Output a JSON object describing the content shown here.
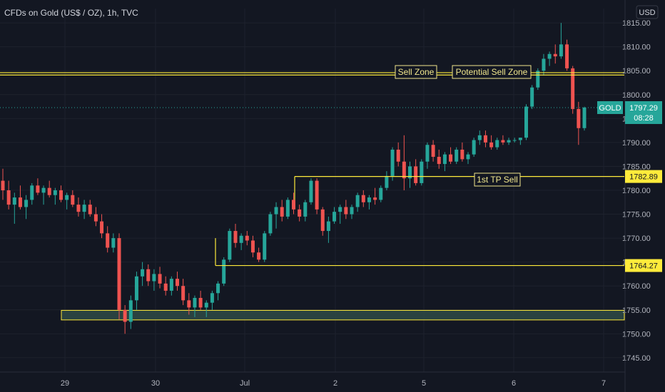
{
  "header": {
    "title": "CFDs on Gold (US$ / OZ), 1h, TVC",
    "currency_button": "USD"
  },
  "colors": {
    "background": "#131722",
    "grid": "#1e222d",
    "up": "#26a69a",
    "down": "#ef5350",
    "annotation": "#f0e68c",
    "level_line": "#ffeb3b",
    "zone_fill": "#2f4a45",
    "price_badge": "#26a69a"
  },
  "price_badge": {
    "symbol": "GOLD",
    "price": "1797.29",
    "countdown": "08:28"
  },
  "level_badges": [
    "1782.89",
    "1764.27"
  ],
  "annotations": {
    "sell_zone": "Sell Zone",
    "potential_sell_zone": "Potential Sell Zone",
    "tp_sell": "1st TP Sell"
  },
  "chart_data": {
    "type": "candlestick",
    "title": "CFDs on Gold (US$ / OZ), 1h, TVC",
    "ylim": [
      1742,
      1818
    ],
    "y_ticks": [
      "1815.00",
      "1810.00",
      "1805.00",
      "1800.00",
      "1795.00",
      "1790.00",
      "1785.00",
      "1780.00",
      "1775.00",
      "1770.00",
      "1765.00",
      "1760.00",
      "1755.00",
      "1750.00",
      "1745.00"
    ],
    "x_ticks": [
      "29",
      "30",
      "Jul",
      "2",
      "5",
      "6",
      "7"
    ],
    "grid": true,
    "last_price": 1797.29,
    "levels": [
      {
        "name": "sell-zone-line-1",
        "value": 1804.6
      },
      {
        "name": "sell-zone-line-2",
        "value": 1804.1
      },
      {
        "name": "tp-line",
        "value": 1782.89
      },
      {
        "name": "support-line",
        "value": 1764.27
      }
    ],
    "zone": {
      "low": 1752.9,
      "high": 1754.9
    },
    "candles": [
      [
        1782,
        1784.5,
        1778,
        1780
      ],
      [
        1780,
        1782,
        1776,
        1777
      ],
      [
        1777,
        1779.5,
        1773,
        1778.5
      ],
      [
        1778.5,
        1781,
        1776,
        1776.5
      ],
      [
        1776.5,
        1779,
        1774,
        1778
      ],
      [
        1778,
        1781.5,
        1777,
        1781
      ],
      [
        1781,
        1782.5,
        1779,
        1779.5
      ],
      [
        1779.5,
        1781,
        1777,
        1780.5
      ],
      [
        1780.5,
        1782,
        1778.5,
        1779
      ],
      [
        1779,
        1780.5,
        1777,
        1780
      ],
      [
        1780,
        1781,
        1777.5,
        1778
      ],
      [
        1778,
        1779.5,
        1776,
        1779
      ],
      [
        1779,
        1780,
        1776.5,
        1777
      ],
      [
        1777,
        1778.5,
        1774.5,
        1775.5
      ],
      [
        1775.5,
        1778,
        1774,
        1777
      ],
      [
        1777,
        1778,
        1774.5,
        1775
      ],
      [
        1775,
        1776.5,
        1772.5,
        1773.5
      ],
      [
        1773.5,
        1775,
        1770,
        1771
      ],
      [
        1771,
        1772.5,
        1767,
        1768
      ],
      [
        1768,
        1771,
        1767,
        1770
      ],
      [
        1770,
        1771,
        1753,
        1755
      ],
      [
        1755,
        1756,
        1750,
        1752.5
      ],
      [
        1752.5,
        1758,
        1751,
        1757
      ],
      [
        1757,
        1763,
        1755,
        1762
      ],
      [
        1762,
        1765,
        1760,
        1763.5
      ],
      [
        1763.5,
        1764.5,
        1760,
        1761
      ],
      [
        1761,
        1763.5,
        1759,
        1762.5
      ],
      [
        1762.5,
        1764,
        1759.5,
        1760.5
      ],
      [
        1760.5,
        1762,
        1758,
        1759
      ],
      [
        1759,
        1762,
        1758,
        1761.5
      ],
      [
        1761.5,
        1763,
        1759,
        1760
      ],
      [
        1760,
        1761.5,
        1756,
        1757
      ],
      [
        1757,
        1758.5,
        1754,
        1755.5
      ],
      [
        1755.5,
        1758,
        1753.5,
        1757.5
      ],
      [
        1757.5,
        1759,
        1755,
        1755.5
      ],
      [
        1755.5,
        1757,
        1753.5,
        1756.5
      ],
      [
        1756.5,
        1759,
        1755,
        1758.5
      ],
      [
        1758.5,
        1761,
        1757,
        1760.5
      ],
      [
        1760.5,
        1766,
        1760,
        1765.5
      ],
      [
        1765.5,
        1772,
        1765,
        1771.5
      ],
      [
        1771.5,
        1773,
        1768,
        1769
      ],
      [
        1769,
        1771,
        1767.5,
        1770.5
      ],
      [
        1770.5,
        1771.5,
        1768.5,
        1769.5
      ],
      [
        1769.5,
        1770.5,
        1766,
        1767
      ],
      [
        1767,
        1768,
        1765,
        1765.5
      ],
      [
        1765.5,
        1771.5,
        1765,
        1771
      ],
      [
        1771,
        1775.5,
        1770.5,
        1775
      ],
      [
        1775,
        1777.5,
        1772,
        1776.5
      ],
      [
        1776.5,
        1778,
        1773.5,
        1774.5
      ],
      [
        1774.5,
        1778.5,
        1774,
        1778
      ],
      [
        1778,
        1779.5,
        1775,
        1776
      ],
      [
        1776,
        1777,
        1773.5,
        1774.5
      ],
      [
        1774.5,
        1778,
        1773.5,
        1777.5
      ],
      [
        1777.5,
        1782.5,
        1777,
        1782
      ],
      [
        1782,
        1782.5,
        1775,
        1776
      ],
      [
        1776,
        1776.5,
        1770.5,
        1771.5
      ],
      [
        1771.5,
        1774.5,
        1769,
        1773.5
      ],
      [
        1773.5,
        1776.5,
        1773,
        1775.5
      ],
      [
        1775.5,
        1777,
        1773,
        1776.5
      ],
      [
        1776.5,
        1778,
        1774,
        1775
      ],
      [
        1775,
        1777,
        1774,
        1776.5
      ],
      [
        1776.5,
        1779.5,
        1775.5,
        1779
      ],
      [
        1779,
        1780,
        1776.5,
        1777.5
      ],
      [
        1777.5,
        1779,
        1776,
        1778.5
      ],
      [
        1778.5,
        1780.5,
        1777,
        1778
      ],
      [
        1778,
        1781,
        1777.5,
        1780.5
      ],
      [
        1780.5,
        1784,
        1780,
        1783
      ],
      [
        1783,
        1789,
        1782,
        1788.5
      ],
      [
        1788.5,
        1790,
        1785,
        1786
      ],
      [
        1786,
        1791.5,
        1780,
        1782.5
      ],
      [
        1782.5,
        1786,
        1780.5,
        1785
      ],
      [
        1785,
        1786.5,
        1781,
        1781.5
      ],
      [
        1781.5,
        1786.5,
        1781,
        1786
      ],
      [
        1786,
        1790,
        1784.5,
        1789.5
      ],
      [
        1789.5,
        1790.5,
        1786,
        1787
      ],
      [
        1787,
        1788.5,
        1784.5,
        1785.5
      ],
      [
        1785.5,
        1788,
        1784,
        1787.5
      ],
      [
        1787.5,
        1789,
        1785.5,
        1786
      ],
      [
        1786,
        1789,
        1785.5,
        1788.5
      ],
      [
        1788.5,
        1790,
        1786,
        1786.5
      ],
      [
        1786.5,
        1788,
        1785.5,
        1787.5
      ],
      [
        1787.5,
        1791,
        1787,
        1790.5
      ],
      [
        1790.5,
        1792.5,
        1789.5,
        1791.5
      ],
      [
        1791.5,
        1792.5,
        1789,
        1790
      ],
      [
        1790,
        1791.5,
        1788.5,
        1789
      ],
      [
        1789,
        1791,
        1788.5,
        1790.5
      ],
      [
        1790.5,
        1791.5,
        1789.5,
        1790
      ],
      [
        1790,
        1791,
        1789.5,
        1790.5
      ],
      [
        1790.5,
        1791,
        1790,
        1790.5
      ],
      [
        1790.5,
        1791,
        1789.5,
        1791
      ],
      [
        1791,
        1798,
        1790.5,
        1797.5
      ],
      [
        1797.5,
        1802,
        1797,
        1801.5
      ],
      [
        1801.5,
        1805.5,
        1801,
        1805
      ],
      [
        1805,
        1808.5,
        1804,
        1807.5
      ],
      [
        1807.5,
        1809,
        1806,
        1808.5
      ],
      [
        1808.5,
        1810.5,
        1806.5,
        1808
      ],
      [
        1808,
        1815,
        1807.5,
        1810.5
      ],
      [
        1810.5,
        1811.5,
        1805,
        1805.5
      ],
      [
        1805.5,
        1806,
        1796,
        1797
      ],
      [
        1797,
        1798.5,
        1789.5,
        1793
      ],
      [
        1793,
        1797.5,
        1792.5,
        1797.29
      ]
    ]
  }
}
